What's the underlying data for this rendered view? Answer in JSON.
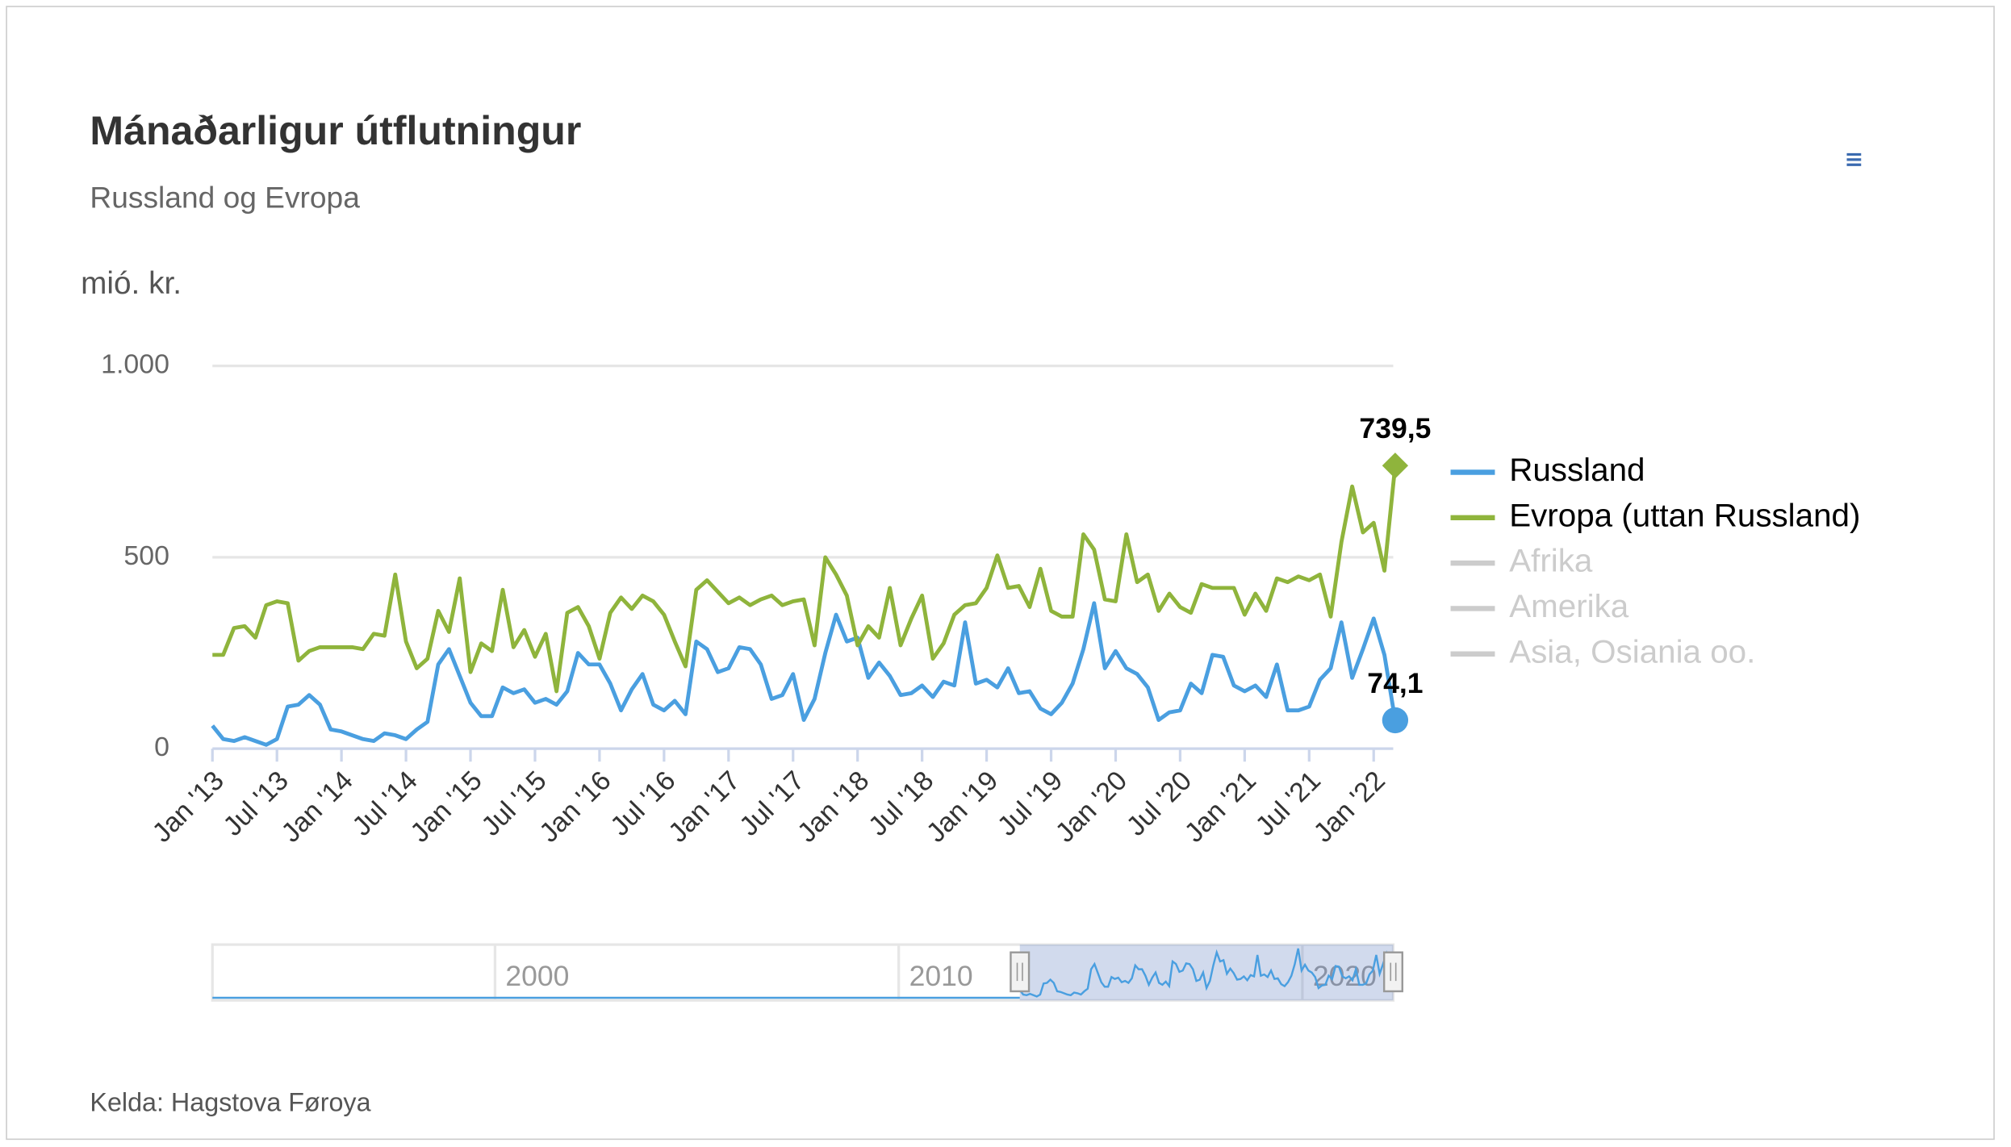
{
  "chart_data": {
    "type": "line",
    "title": "Mánaðarligur útflutningur",
    "subtitle": "Russland og Evropa",
    "y_axis_label": "mió. kr.",
    "source": "Kelda: Hagstova Føroya",
    "categories": [
      "Jan '13",
      null,
      null,
      null,
      null,
      null,
      "Jul '13",
      null,
      null,
      null,
      null,
      null,
      "Jan '14",
      null,
      null,
      null,
      null,
      null,
      "Jul '14",
      null,
      null,
      null,
      null,
      null,
      "Jan '15",
      null,
      null,
      null,
      null,
      null,
      "Jul '15",
      null,
      null,
      null,
      null,
      null,
      "Jan '16",
      null,
      null,
      null,
      null,
      null,
      "Jul '16",
      null,
      null,
      null,
      null,
      null,
      "Jan '17",
      null,
      null,
      null,
      null,
      null,
      "Jul '17",
      null,
      null,
      null,
      null,
      null,
      "Jan '18",
      null,
      null,
      null,
      null,
      null,
      "Jul '18",
      null,
      null,
      null,
      null,
      null,
      "Jan '19",
      null,
      null,
      null,
      null,
      null,
      "Jul '19",
      null,
      null,
      null,
      null,
      null,
      "Jan '20",
      null,
      null,
      null,
      null,
      null,
      "Jul '20",
      null,
      null,
      null,
      null,
      null,
      "Jan '21",
      null,
      null,
      null,
      null,
      null,
      "Jul '21",
      null,
      null,
      null,
      null,
      null,
      "Jan '22",
      null,
      null
    ],
    "series": [
      {
        "name": "Russland",
        "color": "#4a9fe0",
        "marker": "circle",
        "values": [
          60,
          25,
          20,
          30,
          20,
          10,
          25,
          110,
          115,
          140,
          115,
          50,
          45,
          35,
          25,
          20,
          40,
          35,
          25,
          50,
          70,
          220,
          260,
          190,
          120,
          85,
          85,
          160,
          145,
          155,
          120,
          130,
          115,
          150,
          250,
          220,
          220,
          170,
          100,
          155,
          195,
          115,
          100,
          125,
          90,
          280,
          260,
          200,
          210,
          265,
          260,
          220,
          130,
          140,
          195,
          75,
          130,
          250,
          350,
          280,
          290,
          185,
          225,
          190,
          140,
          145,
          165,
          135,
          175,
          165,
          330,
          170,
          180,
          160,
          210,
          145,
          150,
          105,
          90,
          120,
          170,
          260,
          380,
          210,
          255,
          210,
          195,
          160,
          75,
          95,
          100,
          170,
          145,
          245,
          240,
          165,
          150,
          165,
          135,
          220,
          100,
          100,
          110,
          180,
          210,
          330,
          185,
          260,
          340,
          245,
          74.1
        ],
        "value_labels": {
          "110": "74,1"
        }
      },
      {
        "name": "Evropa (uttan Russland)",
        "color": "#8fb43c",
        "marker": "diamond",
        "values": [
          245,
          245,
          315,
          320,
          290,
          375,
          385,
          380,
          230,
          255,
          265,
          265,
          265,
          265,
          260,
          300,
          295,
          455,
          280,
          210,
          235,
          360,
          305,
          445,
          200,
          275,
          255,
          415,
          265,
          310,
          240,
          300,
          150,
          355,
          370,
          320,
          235,
          355,
          395,
          365,
          400,
          385,
          350,
          280,
          215,
          415,
          440,
          410,
          380,
          395,
          375,
          390,
          400,
          375,
          385,
          390,
          270,
          500,
          455,
          400,
          270,
          320,
          290,
          420,
          270,
          340,
          400,
          235,
          275,
          350,
          375,
          380,
          420,
          505,
          420,
          425,
          370,
          470,
          360,
          345,
          345,
          560,
          520,
          390,
          385,
          560,
          435,
          455,
          360,
          405,
          370,
          355,
          430,
          420,
          420,
          420,
          350,
          405,
          360,
          445,
          435,
          450,
          440,
          455,
          345,
          540,
          685,
          565,
          590,
          465,
          739.5
        ],
        "value_labels": {
          "110": "739,5"
        }
      }
    ],
    "hidden_legend": [
      "Afrika",
      "Amerika",
      "Asia, Osiania oo."
    ],
    "hidden_color": "#cccccc",
    "ylim": [
      0,
      1000
    ],
    "yticks": [
      0,
      500,
      {
        "value": 1000,
        "label": "1.000"
      }
    ],
    "grid": true,
    "legend": "right",
    "navigator_xlim": [
      1993,
      2022.25
    ],
    "navigator_ticks": [
      2000,
      2010,
      2020
    ],
    "navigator_range": [
      2013,
      2022.25
    ]
  }
}
